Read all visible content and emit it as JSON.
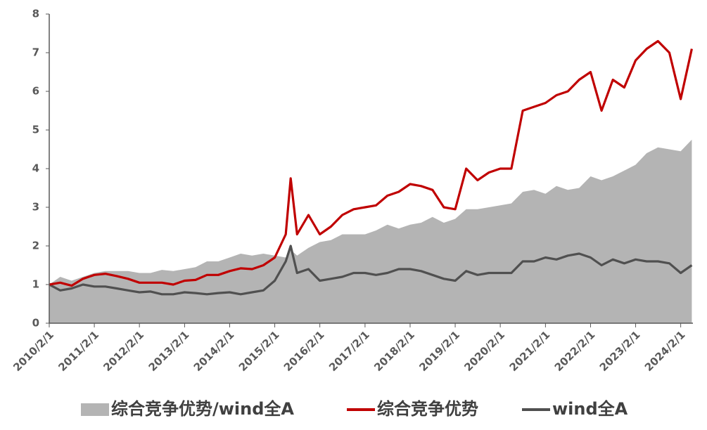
{
  "chart_data": {
    "type": "line",
    "x": [
      "2010/2/1",
      "2010/5/1",
      "2010/8/1",
      "2010/11/1",
      "2011/2/1",
      "2011/5/1",
      "2011/8/1",
      "2011/11/1",
      "2012/2/1",
      "2012/5/1",
      "2012/8/1",
      "2012/11/1",
      "2013/2/1",
      "2013/5/1",
      "2013/8/1",
      "2013/11/1",
      "2014/2/1",
      "2014/5/1",
      "2014/8/1",
      "2014/11/1",
      "2015/2/1",
      "2015/5/1",
      "2015/6/10",
      "2015/8/1",
      "2015/11/1",
      "2016/2/1",
      "2016/5/1",
      "2016/8/1",
      "2016/11/1",
      "2017/2/1",
      "2017/5/1",
      "2017/8/1",
      "2017/11/1",
      "2018/2/1",
      "2018/5/1",
      "2018/8/1",
      "2018/11/1",
      "2019/2/1",
      "2019/5/1",
      "2019/8/1",
      "2019/11/1",
      "2020/2/1",
      "2020/5/1",
      "2020/8/1",
      "2020/11/1",
      "2021/2/1",
      "2021/5/1",
      "2021/8/1",
      "2021/11/1",
      "2022/2/1",
      "2022/5/1",
      "2022/8/1",
      "2022/11/1",
      "2023/2/1",
      "2023/5/1",
      "2023/8/1",
      "2023/11/1",
      "2024/2/1",
      "2024/5/1"
    ],
    "series": [
      {
        "name": "综合竞争优势/wind全A",
        "style": "area",
        "color": "#b4b4b4",
        "values": [
          1.0,
          1.2,
          1.1,
          1.2,
          1.3,
          1.35,
          1.35,
          1.35,
          1.3,
          1.3,
          1.38,
          1.35,
          1.4,
          1.45,
          1.6,
          1.6,
          1.7,
          1.8,
          1.75,
          1.8,
          1.75,
          1.7,
          1.9,
          1.75,
          1.95,
          2.1,
          2.15,
          2.3,
          2.3,
          2.3,
          2.4,
          2.55,
          2.45,
          2.55,
          2.6,
          2.75,
          2.6,
          2.7,
          2.95,
          2.95,
          3.0,
          3.05,
          3.1,
          3.4,
          3.45,
          3.35,
          3.55,
          3.45,
          3.5,
          3.8,
          3.7,
          3.8,
          3.95,
          4.1,
          4.4,
          4.55,
          4.5,
          4.45,
          4.75
        ]
      },
      {
        "name": "综合竞争优势",
        "style": "line",
        "color": "#c00000",
        "values": [
          1.0,
          1.05,
          0.97,
          1.15,
          1.25,
          1.28,
          1.22,
          1.15,
          1.05,
          1.05,
          1.05,
          1.0,
          1.1,
          1.12,
          1.25,
          1.25,
          1.35,
          1.42,
          1.4,
          1.5,
          1.7,
          2.3,
          3.75,
          2.3,
          2.8,
          2.3,
          2.5,
          2.8,
          2.95,
          3.0,
          3.05,
          3.3,
          3.4,
          3.6,
          3.55,
          3.45,
          3.0,
          2.95,
          4.0,
          3.7,
          3.9,
          4.0,
          4.0,
          5.5,
          5.6,
          5.7,
          5.9,
          6.0,
          6.3,
          6.5,
          5.5,
          6.3,
          6.1,
          6.8,
          7.1,
          7.3,
          7.0,
          5.8,
          7.1
        ]
      },
      {
        "name": "wind全A",
        "style": "line",
        "color": "#505050",
        "values": [
          1.0,
          0.85,
          0.9,
          1.0,
          0.95,
          0.95,
          0.9,
          0.85,
          0.8,
          0.82,
          0.75,
          0.75,
          0.8,
          0.78,
          0.75,
          0.78,
          0.8,
          0.75,
          0.8,
          0.85,
          1.1,
          1.6,
          2.0,
          1.3,
          1.4,
          1.1,
          1.15,
          1.2,
          1.3,
          1.3,
          1.25,
          1.3,
          1.4,
          1.4,
          1.35,
          1.25,
          1.15,
          1.1,
          1.35,
          1.25,
          1.3,
          1.3,
          1.3,
          1.6,
          1.6,
          1.7,
          1.65,
          1.75,
          1.8,
          1.7,
          1.5,
          1.65,
          1.55,
          1.65,
          1.6,
          1.6,
          1.55,
          1.3,
          1.5
        ]
      }
    ],
    "xlim": [
      "2010/2/1",
      "2024/5/10"
    ],
    "xticks": [
      "2010/2/1",
      "2011/2/1",
      "2012/2/1",
      "2013/2/1",
      "2014/2/1",
      "2015/2/1",
      "2016/2/1",
      "2017/2/1",
      "2018/2/1",
      "2019/2/1",
      "2020/2/1",
      "2021/2/1",
      "2022/2/1",
      "2023/2/1",
      "2024/2/1"
    ],
    "ylim": [
      0,
      8
    ],
    "yticks": [
      0,
      1,
      2,
      3,
      4,
      5,
      6,
      7,
      8
    ]
  }
}
